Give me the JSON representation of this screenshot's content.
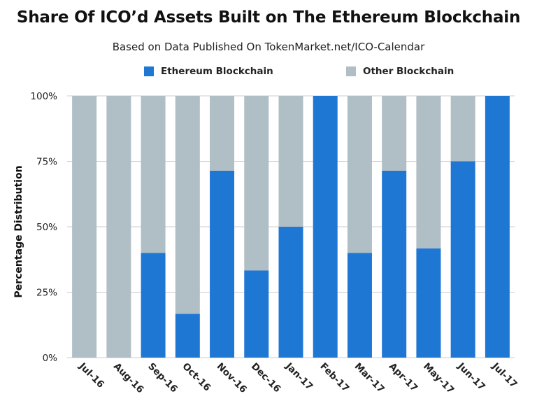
{
  "title": "Share Of ICO’d Assets Built on The Ethereum Blockchain",
  "subtitle": "Based on Data Published On TokenMarket.net/ICO-Calendar",
  "colors": {
    "ethereum": "#1f77d4",
    "other": "#b0bec5",
    "grid": "#cccccc"
  },
  "chart_data": {
    "type": "bar",
    "stacked": true,
    "ylabel": "Percentage Distribution",
    "ylim": [
      0,
      100
    ],
    "yticks": [
      "0%",
      "25%",
      "50%",
      "75%",
      "100%"
    ],
    "grid": true,
    "legend_position": "top",
    "categories": [
      "Jul-16",
      "Aug-16",
      "Sep-16",
      "Oct-16",
      "Nov-16",
      "Dec-16",
      "Jan-17",
      "Feb-17",
      "Mar-17",
      "Apr-17",
      "May-17",
      "Jun-17",
      "Jul-17"
    ],
    "series": [
      {
        "name": "Ethereum Blockchain",
        "color": "#1f77d4",
        "values": [
          0,
          0,
          40,
          16.7,
          71.4,
          33.3,
          50,
          100,
          40,
          71.4,
          41.7,
          75,
          100
        ]
      },
      {
        "name": "Other Blockchain",
        "color": "#b0bec5",
        "values": [
          100,
          100,
          60,
          83.3,
          28.6,
          66.7,
          50,
          0,
          60,
          28.6,
          58.3,
          25,
          0
        ]
      }
    ]
  }
}
